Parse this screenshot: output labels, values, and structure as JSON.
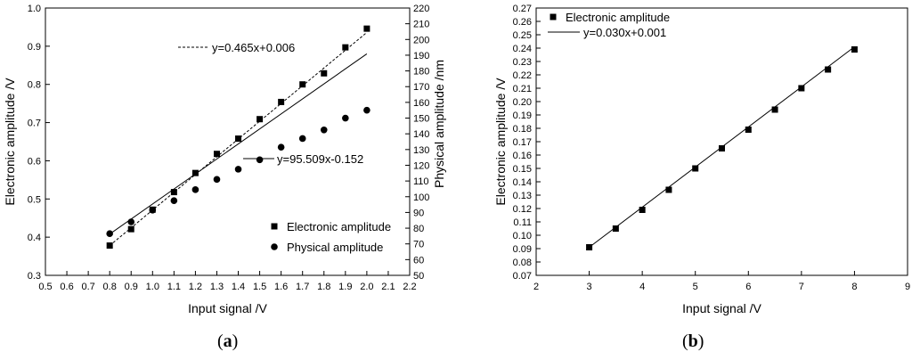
{
  "captions": {
    "a": "a",
    "b": "b"
  },
  "chart_data": [
    {
      "panel": "(a)",
      "type": "scatter",
      "xlabel": "Input signal /V",
      "ylabel": "Electronic amplitude /V",
      "ylabel_right": "Physical amplitude /nm",
      "xlim": [
        0.5,
        2.2
      ],
      "ylim": [
        0.3,
        1.0
      ],
      "ylim_right": [
        50,
        220
      ],
      "x_ticks": [
        "0.5",
        "0.6",
        "0.7",
        "0.8",
        "0.9",
        "1.0",
        "1.1",
        "1.2",
        "1.3",
        "1.4",
        "1.5",
        "1.6",
        "1.7",
        "1.8",
        "1.9",
        "2.0",
        "2.1",
        "2.2"
      ],
      "y_ticks": [
        "0.3",
        "0.4",
        "0.5",
        "0.6",
        "0.7",
        "0.8",
        "0.9",
        "1.0"
      ],
      "y_ticks_right": [
        "50",
        "60",
        "70",
        "80",
        "90",
        "100",
        "110",
        "120",
        "130",
        "140",
        "150",
        "160",
        "170",
        "180",
        "190",
        "200",
        "210",
        "220"
      ],
      "grid": false,
      "legend_position": "lower-right",
      "series": [
        {
          "name": "Electronic amplitude",
          "marker": "square",
          "axis": "left",
          "x": [
            0.8,
            0.9,
            1.0,
            1.1,
            1.2,
            1.3,
            1.4,
            1.5,
            1.6,
            1.7,
            1.8,
            1.9,
            2.0
          ],
          "y": [
            0.378,
            0.421,
            0.472,
            0.518,
            0.568,
            0.618,
            0.658,
            0.709,
            0.754,
            0.8,
            0.829,
            0.897,
            0.946
          ]
        },
        {
          "name": "Physical amplitude",
          "marker": "circle",
          "axis": "right",
          "x": [
            0.8,
            0.9,
            1.0,
            1.1,
            1.2,
            1.3,
            1.4,
            1.5,
            1.6,
            1.7,
            1.8,
            1.9,
            2.0
          ],
          "y": [
            76.5,
            84.0,
            91.5,
            97.5,
            104.5,
            111.0,
            117.5,
            123.5,
            131.5,
            137.0,
            142.5,
            150.0,
            155.0
          ]
        }
      ],
      "fits": [
        {
          "label": "y=0.465x+0.006",
          "style": "dashed",
          "axis": "left",
          "slope": 0.465,
          "intercept": 0.006,
          "x_range": [
            0.8,
            2.0
          ]
        },
        {
          "label": "y=95.509x-0.152",
          "style": "solid",
          "axis": "right",
          "slope": 95.509,
          "intercept": -0.152,
          "x_range": [
            0.8,
            2.0
          ]
        }
      ]
    },
    {
      "panel": "(b)",
      "type": "scatter",
      "xlabel": "Input signal /V",
      "ylabel": "Electronic amplitude /V",
      "xlim": [
        2,
        9
      ],
      "ylim": [
        0.07,
        0.27
      ],
      "x_ticks": [
        "2",
        "3",
        "4",
        "5",
        "6",
        "7",
        "8",
        "9"
      ],
      "y_ticks": [
        "0.07",
        "0.08",
        "0.09",
        "0.10",
        "0.11",
        "0.12",
        "0.13",
        "0.14",
        "0.15",
        "0.16",
        "0.17",
        "0.18",
        "0.19",
        "0.20",
        "0.21",
        "0.22",
        "0.23",
        "0.24",
        "0.25",
        "0.26",
        "0.27"
      ],
      "grid": false,
      "legend_position": "top-left",
      "series": [
        {
          "name": "Electronic amplitude",
          "marker": "square",
          "x": [
            3,
            3.5,
            4,
            4.5,
            5,
            5.5,
            6,
            6.5,
            7,
            7.5,
            8
          ],
          "y": [
            0.091,
            0.105,
            0.119,
            0.134,
            0.15,
            0.165,
            0.179,
            0.194,
            0.21,
            0.224,
            0.239
          ]
        }
      ],
      "fits": [
        {
          "label": "y=0.030x+0.001",
          "style": "solid",
          "slope": 0.03,
          "intercept": 0.001,
          "x_range": [
            3,
            8
          ]
        }
      ]
    }
  ]
}
